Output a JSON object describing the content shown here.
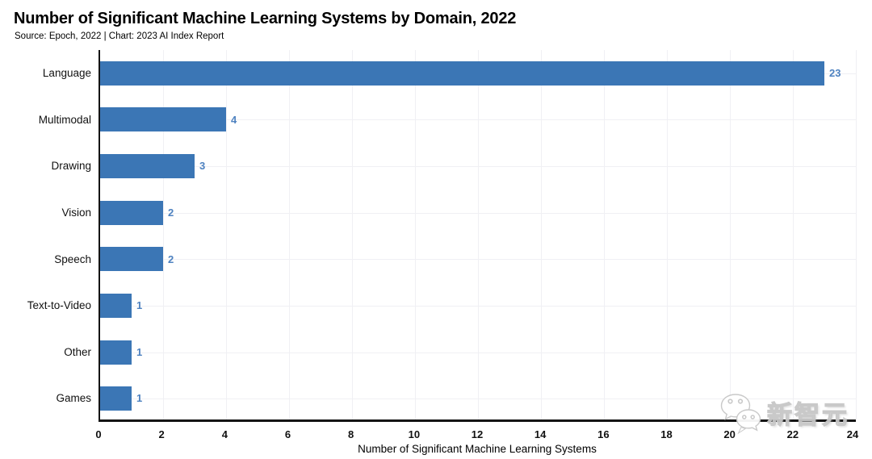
{
  "header": {
    "title": "Number of Significant Machine Learning Systems by Domain, 2022",
    "subtitle": "Source: Epoch, 2022 | Chart: 2023 AI Index Report"
  },
  "chart_data": {
    "type": "bar",
    "orientation": "horizontal",
    "categories": [
      "Language",
      "Multimodal",
      "Drawing",
      "Vision",
      "Speech",
      "Text-to-Video",
      "Other",
      "Games"
    ],
    "values": [
      23,
      4,
      3,
      2,
      2,
      1,
      1,
      1
    ],
    "title": "Number of Significant Machine Learning Systems by Domain, 2022",
    "xlabel": "Number of Significant Machine Learning Systems",
    "ylabel": "",
    "xlim": [
      0,
      24
    ],
    "xticks": [
      0,
      2,
      4,
      6,
      8,
      10,
      12,
      14,
      16,
      18,
      20,
      22,
      24
    ],
    "grid": "both",
    "legend": "none",
    "bar_color": "#3B76B5",
    "value_label_color": "#4E82C0",
    "axis_color": "#141414",
    "grid_color": "#F0F0F4"
  },
  "watermark": {
    "text": "新智元",
    "icon": "wechat-logo-icon"
  }
}
